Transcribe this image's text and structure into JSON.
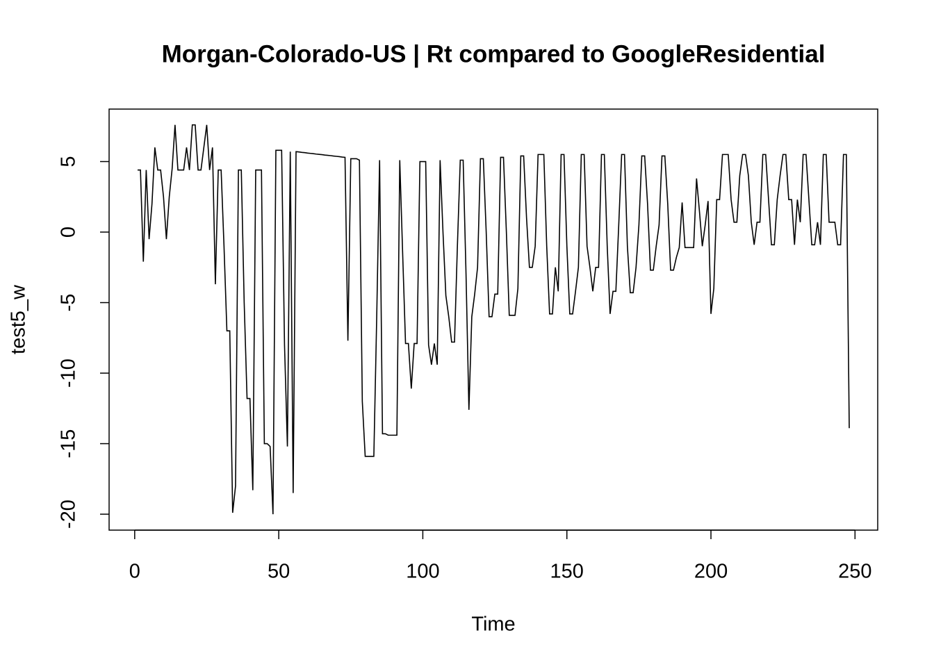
{
  "chart_data": {
    "type": "line",
    "title": "Morgan-Colorado-US | Rt compared to GoogleResidential",
    "xlabel": "Time",
    "ylabel": "test5_w",
    "color": "#000000",
    "x": [
      1,
      2,
      3,
      4,
      5,
      6,
      7,
      8,
      9,
      10,
      11,
      12,
      13,
      14,
      15,
      16,
      17,
      18,
      19,
      20,
      21,
      22,
      23,
      24,
      25,
      26,
      27,
      28,
      29,
      30,
      31,
      32,
      33,
      34,
      35,
      36,
      37,
      38,
      39,
      40,
      41,
      42,
      43,
      44,
      45,
      46,
      47,
      48,
      49,
      50,
      51,
      52,
      53,
      54,
      55,
      56,
      57,
      58,
      59,
      60,
      61,
      62,
      63,
      64,
      65,
      66,
      67,
      68,
      69,
      70,
      71,
      72,
      73,
      74,
      75,
      76,
      77,
      78,
      79,
      80,
      81,
      82,
      83,
      84,
      85,
      86,
      87,
      88,
      89,
      90,
      91,
      92,
      93,
      94,
      95,
      96,
      97,
      98,
      99,
      100,
      101,
      102,
      103,
      104,
      105,
      106,
      107,
      108,
      109,
      110,
      111,
      112,
      113,
      114,
      115,
      116,
      117,
      118,
      119,
      120,
      121,
      122,
      123,
      124,
      125,
      126,
      127,
      128,
      129,
      130,
      131,
      132,
      133,
      134,
      135,
      136,
      137,
      138,
      139,
      140,
      141,
      142,
      143,
      144,
      145,
      146,
      147,
      148,
      149,
      150,
      151,
      152,
      153,
      154,
      155,
      156,
      157,
      158,
      159,
      160,
      161,
      162,
      163,
      164,
      165,
      166,
      167,
      168,
      169,
      170,
      171,
      172,
      173,
      174,
      175,
      176,
      177,
      178,
      179,
      180,
      181,
      182,
      183,
      184,
      185,
      186,
      187,
      188,
      189,
      190,
      191,
      192,
      193,
      194,
      195,
      196,
      197,
      198,
      199,
      200,
      201,
      202,
      203,
      204,
      205,
      206,
      207,
      208,
      209,
      210,
      211,
      212,
      213,
      214,
      215,
      216,
      217,
      218,
      219,
      220,
      221,
      222,
      223,
      224,
      225,
      226,
      227,
      228,
      229,
      230,
      231,
      232,
      233,
      234,
      235,
      236,
      237,
      238,
      239,
      240,
      241,
      242,
      243,
      244,
      245,
      246,
      247,
      248
    ],
    "values": [
      4.4,
      4.4,
      -2.1,
      4.4,
      -0.5,
      2,
      6,
      4.4,
      4.4,
      2.5,
      -0.5,
      2.5,
      4.5,
      7.6,
      4.4,
      4.4,
      4.4,
      6,
      4.4,
      7.6,
      7.6,
      4.4,
      4.4,
      6,
      7.6,
      4.4,
      6,
      -3.7,
      4.4,
      4.4,
      -1,
      -7,
      -7,
      -19.9,
      -18,
      4.4,
      4.4,
      -5,
      -11.8,
      -11.8,
      -18.3,
      4.4,
      4.4,
      4.4,
      -15,
      -15,
      -15.2,
      -20,
      5.8,
      5.8,
      5.8,
      -8,
      -15.2,
      5.7,
      -18.5,
      5.7,
      5.68,
      5.65,
      5.63,
      5.6,
      5.58,
      5.56,
      5.53,
      5.51,
      5.49,
      5.46,
      5.44,
      5.42,
      5.39,
      5.37,
      5.35,
      5.32,
      5.3,
      -7.7,
      5.2,
      5.2,
      5.2,
      5.1,
      -12,
      -15.9,
      -15.9,
      -15.9,
      -15.9,
      -6,
      5.1,
      -14.3,
      -14.3,
      -14.4,
      -14.4,
      -14.4,
      -14.4,
      5.1,
      -1.5,
      -7.9,
      -7.9,
      -11.1,
      -7.9,
      -7.9,
      5,
      5,
      5,
      -8,
      -9.4,
      -7.9,
      -9.4,
      5.1,
      0,
      -4.5,
      -6,
      -7.8,
      -7.8,
      -1,
      5.1,
      5.1,
      -3,
      -12.6,
      -6,
      -4.4,
      -2.5,
      5.2,
      5.2,
      0,
      -6,
      -6,
      -4.4,
      -4.4,
      5.3,
      5.3,
      0,
      -5.9,
      -5.9,
      -5.9,
      -4,
      5.4,
      5.4,
      1,
      -2.5,
      -2.5,
      -1,
      5.5,
      5.5,
      5.5,
      -1,
      -5.8,
      -5.8,
      -2.5,
      -4.2,
      5.5,
      5.5,
      -1,
      -5.8,
      -5.8,
      -4.2,
      -2.5,
      5.5,
      5.5,
      -1,
      -2.5,
      -4.2,
      -2.5,
      -2.5,
      5.5,
      5.5,
      -1,
      -5.8,
      -4.2,
      -4.2,
      0.5,
      5.5,
      5.5,
      -1,
      -4.3,
      -4.3,
      -2.5,
      0.5,
      5.4,
      5.4,
      2,
      -2.7,
      -2.7,
      -1,
      0.5,
      5.4,
      5.4,
      2,
      -2.7,
      -2.7,
      -1.8,
      -1.1,
      2.1,
      -1.1,
      -1.1,
      -1.1,
      -1.1,
      3.8,
      1.5,
      -1,
      0.5,
      2.2,
      -5.8,
      -4,
      2.3,
      2.3,
      5.5,
      5.5,
      5.5,
      2.3,
      0.7,
      0.7,
      4,
      5.5,
      5.5,
      4,
      0.7,
      -0.9,
      0.7,
      0.7,
      5.5,
      5.5,
      2.3,
      -0.9,
      -0.9,
      2.3,
      4,
      5.5,
      5.5,
      2.3,
      2.3,
      -0.9,
      2.3,
      0.7,
      5.5,
      5.5,
      2.3,
      -0.9,
      -0.9,
      0.7,
      -0.9,
      5.5,
      5.5,
      0.7,
      0.7,
      0.7,
      -0.9,
      -0.9,
      5.5,
      5.5,
      -13.9
    ],
    "xlim": [
      -8.88,
      257.88
    ],
    "xticks": [
      0,
      50,
      100,
      150,
      200,
      250
    ],
    "ylim": [
      -21.13,
      8.72
    ],
    "yticks": [
      -20,
      -15,
      -10,
      -5,
      0,
      5
    ]
  }
}
